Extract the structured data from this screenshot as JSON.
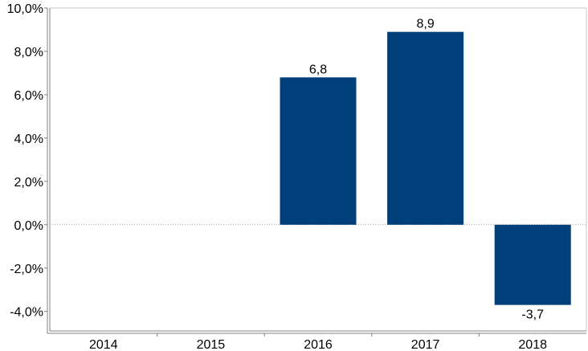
{
  "chart_data": {
    "type": "bar",
    "categories": [
      "2014",
      "2015",
      "2016",
      "2017",
      "2018"
    ],
    "values": [
      null,
      null,
      6.8,
      8.9,
      -3.7
    ],
    "data_labels": [
      "",
      "",
      "6,8",
      "8,9",
      "-3,7"
    ],
    "y_ticks": [
      -4,
      -2,
      0,
      2,
      4,
      6,
      8,
      10
    ],
    "y_tick_labels": [
      "-4,0%",
      "-2,0%",
      "0,0%",
      "2,0%",
      "4,0%",
      "6,0%",
      "8,0%",
      "10,0%"
    ],
    "ylim": [
      -4.9,
      10
    ],
    "bar_color": "#003f7a",
    "zero_line_color": "#a0a0a0",
    "axis_color": "#808080",
    "grid": false,
    "title": "",
    "xlabel": "",
    "ylabel": ""
  }
}
